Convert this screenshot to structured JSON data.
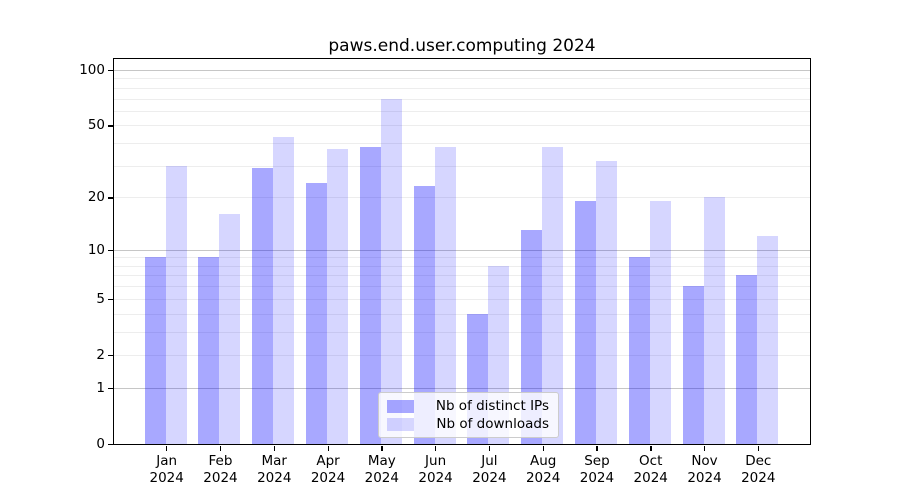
{
  "chart_data": {
    "type": "bar",
    "title": "paws.end.user.computing 2024",
    "yscale": "log1p",
    "ylim": [
      0,
      114
    ],
    "grid": true,
    "legend_position": "bottom-center",
    "months": [
      "Jan",
      "Feb",
      "Mar",
      "Apr",
      "May",
      "Jun",
      "Jul",
      "Aug",
      "Sep",
      "Oct",
      "Nov",
      "Dec"
    ],
    "year": "2024",
    "y_tick_values": [
      100,
      50,
      20,
      10,
      5,
      2,
      1,
      0
    ],
    "y_major_gridlines": [
      1,
      10,
      100
    ],
    "y_minor_gridlines": [
      2,
      3,
      4,
      5,
      6,
      7,
      8,
      9,
      20,
      30,
      40,
      50,
      60,
      70,
      80,
      90
    ],
    "series": [
      {
        "name": "Nb of distinct IPs",
        "color": "rgba(0,0,255,0.34)",
        "solid_color": "#a8a8f9",
        "values": [
          9,
          9,
          29,
          24,
          38,
          23,
          4,
          13,
          19,
          9,
          6,
          7
        ]
      },
      {
        "name": "Nb of downloads",
        "color": "rgba(0,0,255,0.16)",
        "solid_color": "#d7d7fb",
        "values": [
          30,
          16,
          43,
          37,
          70,
          38,
          8,
          38,
          32,
          19,
          20,
          12
        ]
      }
    ]
  }
}
